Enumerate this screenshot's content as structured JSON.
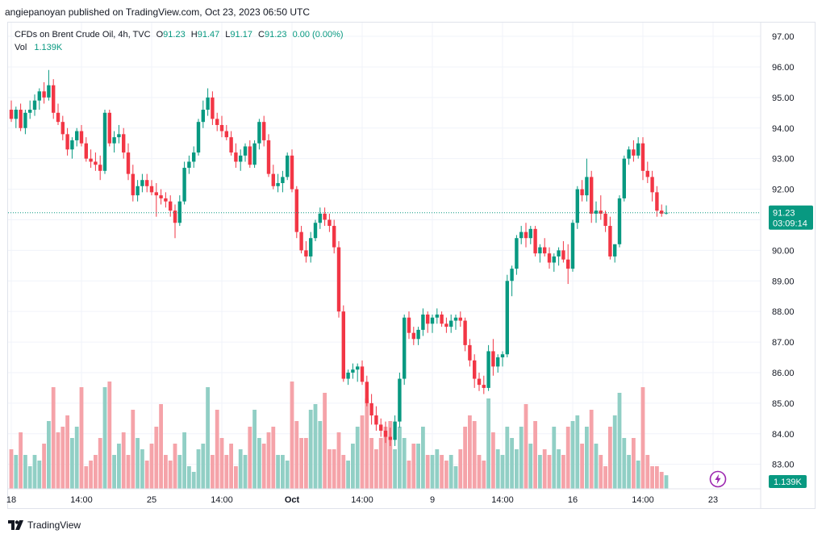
{
  "header": {
    "publish_line": "angiepanoyan published on TradingView.com, Oct 23, 2023 06:50 UTC"
  },
  "legend": {
    "symbol": "CFDs on Brent Crude Oil, 4h, TVC",
    "o_label": "O",
    "o_value": "91.23",
    "h_label": "H",
    "h_value": "91.47",
    "l_label": "L",
    "l_value": "91.17",
    "c_label": "C",
    "c_value": "91.23",
    "change": "0.00 (0.00%)",
    "vol_label": "Vol",
    "vol_value": "1.139K"
  },
  "footer": {
    "brand": "TradingView"
  },
  "colors": {
    "up": "#089981",
    "down": "#f23645",
    "vol_up": "#91cfc5",
    "vol_down": "#f5a3a9",
    "grid": "#f0f3fa",
    "price_line": "#089981"
  },
  "icons": {
    "flash": "lightning-icon",
    "brand_logo": "tradingview-logo-icon"
  },
  "chart_data": {
    "type": "candlestick",
    "timeframe": "4h",
    "y_axis": {
      "ticks": [
        "97.00",
        "96.00",
        "95.00",
        "94.00",
        "93.00",
        "92.00",
        "91.00",
        "90.00",
        "89.00",
        "88.00",
        "87.00",
        "86.00",
        "85.00",
        "84.00",
        "83.00"
      ],
      "ylim": [
        82.2,
        97.45
      ]
    },
    "x_axis": {
      "ticks": [
        "18",
        "14:00",
        "25",
        "14:00",
        "Oct",
        "14:00",
        "9",
        "14:00",
        "16",
        "14:00",
        "23"
      ],
      "tick_index": [
        0,
        15,
        30,
        45,
        60,
        75,
        90,
        105,
        120,
        135,
        150
      ]
    },
    "last_price": {
      "value": 91.23,
      "label": "91.23",
      "countdown": "03:09:14"
    },
    "volume_label": "1.139K",
    "grid": true,
    "candles": [
      [
        94.6,
        94.9,
        94.2,
        94.3,
        0.35
      ],
      [
        94.3,
        94.7,
        94.0,
        94.6,
        0.3
      ],
      [
        94.6,
        94.8,
        93.9,
        94.0,
        0.5
      ],
      [
        94.0,
        94.6,
        93.8,
        94.5,
        0.3
      ],
      [
        94.5,
        94.9,
        94.3,
        94.6,
        0.2
      ],
      [
        94.6,
        95.1,
        94.4,
        94.9,
        0.3
      ],
      [
        94.9,
        95.3,
        94.6,
        95.2,
        0.25
      ],
      [
        95.2,
        95.5,
        94.8,
        95.0,
        0.4
      ],
      [
        95.0,
        95.9,
        94.9,
        95.4,
        0.6
      ],
      [
        95.4,
        95.6,
        94.3,
        94.5,
        0.9
      ],
      [
        94.5,
        94.8,
        94.1,
        94.2,
        0.5
      ],
      [
        94.2,
        94.4,
        93.6,
        93.8,
        0.55
      ],
      [
        93.8,
        94.0,
        93.1,
        93.3,
        0.65
      ],
      [
        93.3,
        93.7,
        93.0,
        93.6,
        0.45
      ],
      [
        93.6,
        94.0,
        93.4,
        93.9,
        0.55
      ],
      [
        93.9,
        94.1,
        93.4,
        93.5,
        0.9
      ],
      [
        93.5,
        93.7,
        92.9,
        93.0,
        0.2
      ],
      [
        93.0,
        93.3,
        92.7,
        92.9,
        0.25
      ],
      [
        92.9,
        93.2,
        92.6,
        92.8,
        0.3
      ],
      [
        92.8,
        93.1,
        92.3,
        92.6,
        0.45
      ],
      [
        92.6,
        94.6,
        92.5,
        94.5,
        0.9
      ],
      [
        94.5,
        94.6,
        93.4,
        93.5,
        0.95
      ],
      [
        93.5,
        93.9,
        93.2,
        93.7,
        0.3
      ],
      [
        93.7,
        94.1,
        93.5,
        93.8,
        0.4
      ],
      [
        93.8,
        94.0,
        93.0,
        93.2,
        0.5
      ],
      [
        93.2,
        93.5,
        92.3,
        92.5,
        0.3
      ],
      [
        92.5,
        92.8,
        91.6,
        91.8,
        0.7
      ],
      [
        91.8,
        92.3,
        91.6,
        92.1,
        0.45
      ],
      [
        92.1,
        92.5,
        91.9,
        92.3,
        0.35
      ],
      [
        92.3,
        92.5,
        91.9,
        92.1,
        0.25
      ],
      [
        92.1,
        92.3,
        91.8,
        91.9,
        0.4
      ],
      [
        91.9,
        92.2,
        91.1,
        91.8,
        0.55
      ],
      [
        91.8,
        92.0,
        91.5,
        91.7,
        0.75
      ],
      [
        91.7,
        91.9,
        91.4,
        91.6,
        0.3
      ],
      [
        91.6,
        91.8,
        91.1,
        91.3,
        0.25
      ],
      [
        91.3,
        91.5,
        90.4,
        90.9,
        0.4
      ],
      [
        90.9,
        91.8,
        90.8,
        91.6,
        0.3
      ],
      [
        91.6,
        92.9,
        91.5,
        92.7,
        0.5
      ],
      [
        92.7,
        93.1,
        92.5,
        92.9,
        0.2
      ],
      [
        92.9,
        93.4,
        92.7,
        93.2,
        0.15
      ],
      [
        93.2,
        94.3,
        93.1,
        94.2,
        0.35
      ],
      [
        94.2,
        94.9,
        94.0,
        94.6,
        0.4
      ],
      [
        94.6,
        95.3,
        94.4,
        95.0,
        0.9
      ],
      [
        95.0,
        95.2,
        94.1,
        94.3,
        0.3
      ],
      [
        94.3,
        94.5,
        93.9,
        94.1,
        0.7
      ],
      [
        94.1,
        94.4,
        93.7,
        93.9,
        0.45
      ],
      [
        93.9,
        94.1,
        93.6,
        93.7,
        0.3
      ],
      [
        93.7,
        93.9,
        93.1,
        93.2,
        0.4
      ],
      [
        93.2,
        93.5,
        92.7,
        92.9,
        0.2
      ],
      [
        92.9,
        93.3,
        92.6,
        93.1,
        0.35
      ],
      [
        93.1,
        93.5,
        92.9,
        93.4,
        0.3
      ],
      [
        93.4,
        93.6,
        92.7,
        92.8,
        0.55
      ],
      [
        92.8,
        93.6,
        92.7,
        93.5,
        0.7
      ],
      [
        93.5,
        94.3,
        93.3,
        94.2,
        0.45
      ],
      [
        94.2,
        94.4,
        93.4,
        93.6,
        0.4
      ],
      [
        93.6,
        93.8,
        92.4,
        92.5,
        0.5
      ],
      [
        92.5,
        92.8,
        92.0,
        92.1,
        0.55
      ],
      [
        92.1,
        92.5,
        91.9,
        92.2,
        0.3
      ],
      [
        92.2,
        92.6,
        91.9,
        92.4,
        0.3
      ],
      [
        92.4,
        93.2,
        92.3,
        93.1,
        0.25
      ],
      [
        93.1,
        93.3,
        91.9,
        92.0,
        0.95
      ],
      [
        92.0,
        92.1,
        90.4,
        90.6,
        0.6
      ],
      [
        90.6,
        90.8,
        89.9,
        90.0,
        0.45
      ],
      [
        90.0,
        90.3,
        89.6,
        89.8,
        0.45
      ],
      [
        89.8,
        90.6,
        89.6,
        90.4,
        0.7
      ],
      [
        90.4,
        91.0,
        90.3,
        90.9,
        0.75
      ],
      [
        90.9,
        91.4,
        90.7,
        91.2,
        0.6
      ],
      [
        91.2,
        91.4,
        90.8,
        91.0,
        0.85
      ],
      [
        91.0,
        91.2,
        90.6,
        90.8,
        0.35
      ],
      [
        90.8,
        91.0,
        89.9,
        90.1,
        0.35
      ],
      [
        90.1,
        90.3,
        87.8,
        88.0,
        0.5
      ],
      [
        88.0,
        88.2,
        85.7,
        85.8,
        0.3
      ],
      [
        85.8,
        86.1,
        85.6,
        86.0,
        0.25
      ],
      [
        86.0,
        86.3,
        85.8,
        86.1,
        0.4
      ],
      [
        86.1,
        86.3,
        85.7,
        86.2,
        0.55
      ],
      [
        86.2,
        86.4,
        85.6,
        85.7,
        0.65
      ],
      [
        85.7,
        85.9,
        84.9,
        85.0,
        0.8
      ],
      [
        85.0,
        85.3,
        84.3,
        84.6,
        0.45
      ],
      [
        84.6,
        84.9,
        84.1,
        84.3,
        0.35
      ],
      [
        84.3,
        84.5,
        83.9,
        84.1,
        0.45
      ],
      [
        84.1,
        84.4,
        83.7,
        83.9,
        0.55
      ],
      [
        83.9,
        84.2,
        83.6,
        83.8,
        0.6
      ],
      [
        83.8,
        84.6,
        83.6,
        84.4,
        0.35
      ],
      [
        84.4,
        86.0,
        84.2,
        85.8,
        0.55
      ],
      [
        85.8,
        87.9,
        85.6,
        87.8,
        0.45
      ],
      [
        87.8,
        88.0,
        87.1,
        87.3,
        0.25
      ],
      [
        87.3,
        87.5,
        86.9,
        87.1,
        0.4
      ],
      [
        87.1,
        87.5,
        86.9,
        87.4,
        0.4
      ],
      [
        87.4,
        88.1,
        87.2,
        87.9,
        0.55
      ],
      [
        87.9,
        88.0,
        87.3,
        87.6,
        0.3
      ],
      [
        87.6,
        87.9,
        87.3,
        87.8,
        0.3
      ],
      [
        87.8,
        88.1,
        87.6,
        87.9,
        0.35
      ],
      [
        87.9,
        88.0,
        87.5,
        87.6,
        0.3
      ],
      [
        87.6,
        87.8,
        87.3,
        87.5,
        0.25
      ],
      [
        87.5,
        87.9,
        87.3,
        87.7,
        0.3
      ],
      [
        87.7,
        87.9,
        87.4,
        87.8,
        0.2
      ],
      [
        87.8,
        88.0,
        87.5,
        87.7,
        0.35
      ],
      [
        87.7,
        87.8,
        86.7,
        86.9,
        0.55
      ],
      [
        86.9,
        87.1,
        86.2,
        86.4,
        0.65
      ],
      [
        86.4,
        86.6,
        85.5,
        85.8,
        0.6
      ],
      [
        85.8,
        86.0,
        85.4,
        85.6,
        0.3
      ],
      [
        85.6,
        85.9,
        85.3,
        85.5,
        0.25
      ],
      [
        85.5,
        86.9,
        85.4,
        86.7,
        0.8
      ],
      [
        86.7,
        87.1,
        85.9,
        86.2,
        0.5
      ],
      [
        86.2,
        86.6,
        86.0,
        86.5,
        0.35
      ],
      [
        86.5,
        86.7,
        86.2,
        86.6,
        0.3
      ],
      [
        86.6,
        89.2,
        86.5,
        89.0,
        0.55
      ],
      [
        89.0,
        89.5,
        88.5,
        89.4,
        0.45
      ],
      [
        89.4,
        90.5,
        89.2,
        90.4,
        0.35
      ],
      [
        90.4,
        90.8,
        90.2,
        90.6,
        0.55
      ],
      [
        90.6,
        90.9,
        90.1,
        90.4,
        0.75
      ],
      [
        90.4,
        90.8,
        90.2,
        90.7,
        0.4
      ],
      [
        90.7,
        90.8,
        89.8,
        89.9,
        0.6
      ],
      [
        89.9,
        90.2,
        89.6,
        90.1,
        0.3
      ],
      [
        90.1,
        90.4,
        89.8,
        89.9,
        0.35
      ],
      [
        89.9,
        90.1,
        89.4,
        89.6,
        0.3
      ],
      [
        89.6,
        89.9,
        89.3,
        89.8,
        0.55
      ],
      [
        89.8,
        90.1,
        89.5,
        90.0,
        0.35
      ],
      [
        90.0,
        90.3,
        89.6,
        89.7,
        0.3
      ],
      [
        89.7,
        90.2,
        88.9,
        89.4,
        0.55
      ],
      [
        89.4,
        91.0,
        89.3,
        90.9,
        0.6
      ],
      [
        90.9,
        92.1,
        90.7,
        92.0,
        0.65
      ],
      [
        92.0,
        92.3,
        91.6,
        91.8,
        0.4
      ],
      [
        91.8,
        93.0,
        91.6,
        92.4,
        0.55
      ],
      [
        92.4,
        92.6,
        90.9,
        91.2,
        0.7
      ],
      [
        91.2,
        91.6,
        90.9,
        91.3,
        0.4
      ],
      [
        91.3,
        91.8,
        91.0,
        91.2,
        0.3
      ],
      [
        91.2,
        91.3,
        90.6,
        90.8,
        0.2
      ],
      [
        90.8,
        91.1,
        89.7,
        89.8,
        0.55
      ],
      [
        89.8,
        90.2,
        89.6,
        90.2,
        0.65
      ],
      [
        90.2,
        91.8,
        90.1,
        91.7,
        0.85
      ],
      [
        91.7,
        93.1,
        91.6,
        93.0,
        0.45
      ],
      [
        93.0,
        93.4,
        92.8,
        93.3,
        0.3
      ],
      [
        93.3,
        93.6,
        92.9,
        93.1,
        0.45
      ],
      [
        93.1,
        93.7,
        93.0,
        93.5,
        0.25
      ],
      [
        93.5,
        93.7,
        92.3,
        92.6,
        0.9
      ],
      [
        92.6,
        92.9,
        92.2,
        92.4,
        0.3
      ],
      [
        92.4,
        92.6,
        91.6,
        91.9,
        0.2
      ],
      [
        91.9,
        92.1,
        91.1,
        91.3,
        0.2
      ],
      [
        91.3,
        91.5,
        91.1,
        91.2,
        0.15
      ],
      [
        91.23,
        91.47,
        91.17,
        91.23,
        0.12
      ]
    ]
  }
}
